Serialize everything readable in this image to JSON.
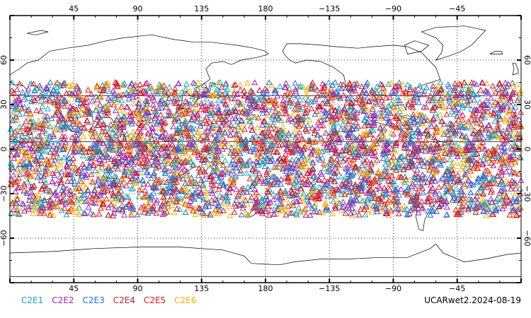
{
  "map": {
    "lon_top_labels": [
      "45",
      "90",
      "135",
      "180",
      "−135",
      "−90",
      "−45"
    ],
    "lon_bottom_labels": [
      "45",
      "90",
      "135",
      "180",
      "−135",
      "−90",
      "−45"
    ],
    "lat_labels": [
      "60",
      "30",
      "0",
      "−30",
      "−60"
    ],
    "lon_range": [
      0,
      360
    ],
    "lat_range": [
      -90,
      90
    ],
    "grid": true,
    "grid_style": "dotted"
  },
  "legend": [
    {
      "label": "C2E1",
      "color": "#18a8c0"
    },
    {
      "label": "C2E2",
      "color": "#a020c0"
    },
    {
      "label": "C2E3",
      "color": "#2070d0"
    },
    {
      "label": "C2E4",
      "color": "#c02030"
    },
    {
      "label": "C2E5",
      "color": "#e01818"
    },
    {
      "label": "C2E6",
      "color": "#f0b000"
    }
  ],
  "dataset_label": "UCARwet2.2024-08-19",
  "observations": {
    "marker": "triangle-icon",
    "lat_band": [
      -45,
      45
    ],
    "count_approx": 4500
  }
}
